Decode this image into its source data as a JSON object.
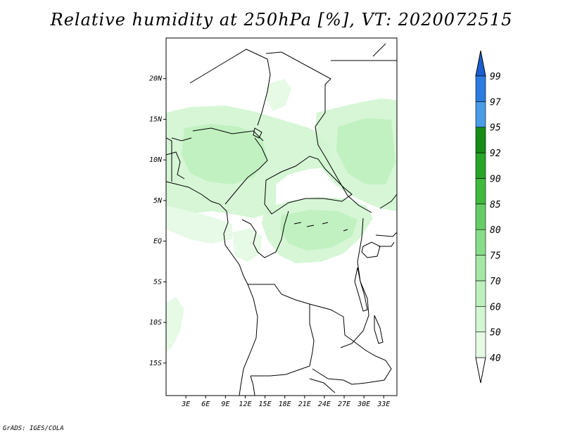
{
  "title": "Relative humidity at 250hPa [%], VT: 2020072515",
  "credit": "GrADS: IGES/COLA",
  "map": {
    "lon_range": [
      0,
      35
    ],
    "lat_range": [
      -19,
      25
    ],
    "lat_ticks": [
      {
        "value": 20,
        "label": "20N"
      },
      {
        "value": 15,
        "label": "15N"
      },
      {
        "value": 10,
        "label": "10N"
      },
      {
        "value": 5,
        "label": "5N"
      },
      {
        "value": 0,
        "label": "EQ"
      },
      {
        "value": -5,
        "label": "5S"
      },
      {
        "value": -10,
        "label": "10S"
      },
      {
        "value": -15,
        "label": "15S"
      }
    ],
    "lon_ticks": [
      {
        "value": 3,
        "label": "3E"
      },
      {
        "value": 6,
        "label": "6E"
      },
      {
        "value": 9,
        "label": "9E"
      },
      {
        "value": 12,
        "label": "12E"
      },
      {
        "value": 15,
        "label": "15E"
      },
      {
        "value": 18,
        "label": "18E"
      },
      {
        "value": 21,
        "label": "21E"
      },
      {
        "value": 24,
        "label": "24E"
      },
      {
        "value": 27,
        "label": "27E"
      },
      {
        "value": 30,
        "label": "30E"
      },
      {
        "value": 33,
        "label": "33E"
      }
    ]
  },
  "colorbar": {
    "levels": [
      "40",
      "50",
      "60",
      "70",
      "75",
      "80",
      "85",
      "90",
      "92",
      "95",
      "97",
      "99"
    ],
    "colors": [
      "#e6fae6",
      "#d2f5d2",
      "#bdf0bd",
      "#a5e8a5",
      "#88dd88",
      "#66cc66",
      "#3fba3f",
      "#28a528",
      "#168c16",
      "#4a9be8",
      "#2c7be0",
      "#1a5fcf"
    ],
    "under_color": "#ffffff",
    "over_color": "#1a5fcf"
  }
}
